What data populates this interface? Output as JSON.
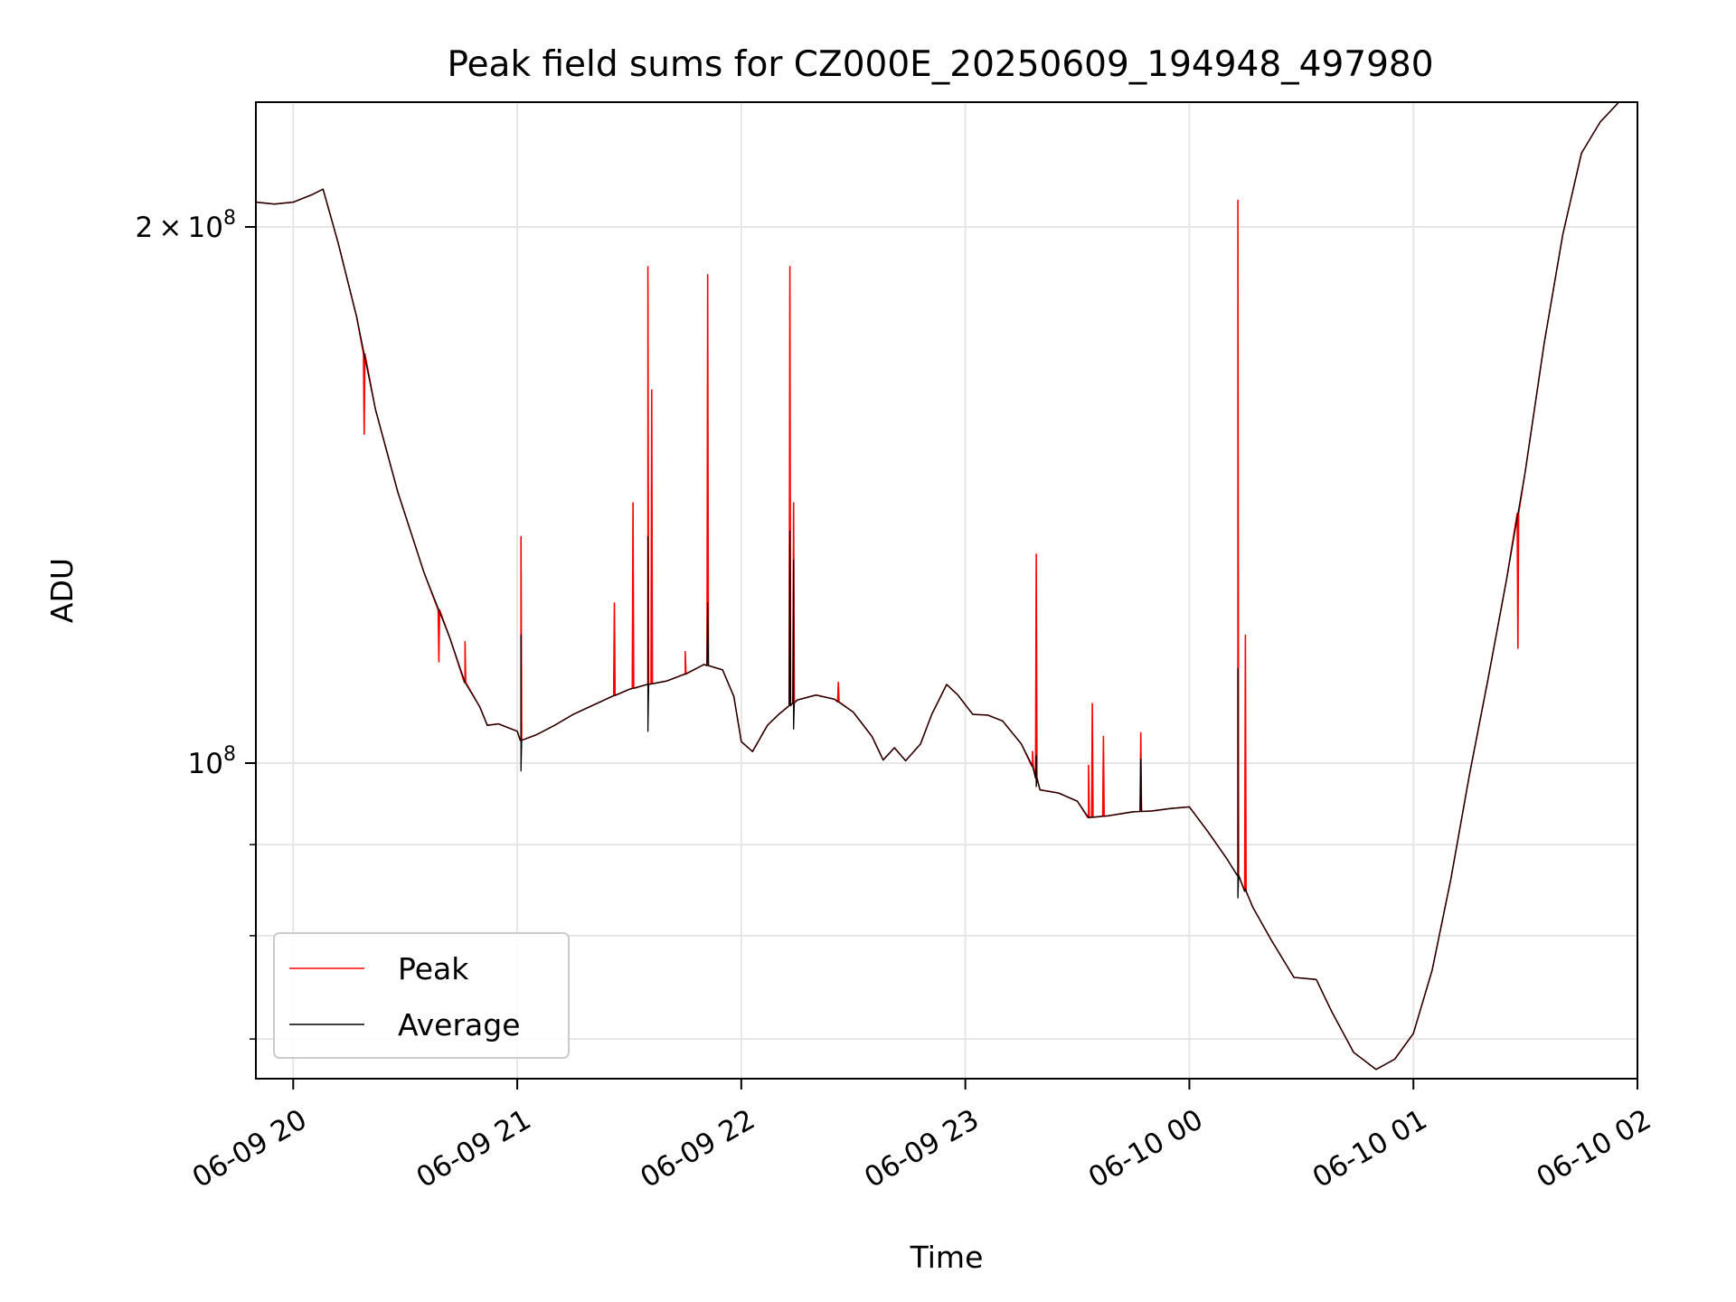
{
  "chart_data": {
    "type": "line",
    "title": "Peak field sums for CZ000E_20250609_194948_497980",
    "xlabel": "Time",
    "ylabel": "ADU",
    "y_scale": "log",
    "grid": true,
    "legend_position": "lower-left",
    "x_range": [
      "2025-06-09 19:50",
      "2025-06-10 02:00"
    ],
    "y_range": [
      66500000,
      235000000
    ],
    "x_ticks": [
      {
        "value": "2025-06-09 20:00",
        "label": "06-09 20"
      },
      {
        "value": "2025-06-09 21:00",
        "label": "06-09 21"
      },
      {
        "value": "2025-06-09 22:00",
        "label": "06-09 22"
      },
      {
        "value": "2025-06-09 23:00",
        "label": "06-09 23"
      },
      {
        "value": "2025-06-10 00:00",
        "label": "06-10 00"
      },
      {
        "value": "2025-06-10 01:00",
        "label": "06-10 01"
      },
      {
        "value": "2025-06-10 02:00",
        "label": "06-10 02"
      }
    ],
    "y_major_ticks": [
      {
        "value": 100000000,
        "base": "10",
        "exp": "8"
      },
      {
        "value": 200000000,
        "coef": "2",
        "base": "10",
        "exp": "8"
      }
    ],
    "y_minor_ticks": [
      70000000,
      80000000,
      90000000
    ],
    "series": [
      {
        "name": "Peak",
        "color": "#ff0000",
        "points": [
          [
            "2025-06-09 19:50",
            206500000
          ],
          [
            "2025-06-09 19:55",
            206000000
          ],
          [
            "2025-06-09 20:00",
            206500000
          ],
          [
            "2025-06-09 20:05",
            208500000
          ],
          [
            "2025-06-09 20:08",
            210000000
          ],
          [
            "2025-06-09 20:12",
            196000000
          ],
          [
            "2025-06-09 20:17",
            178000000
          ],
          [
            "2025-06-09 20:22",
            158000000
          ],
          [
            "2025-06-09 20:28",
            142000000
          ],
          [
            "2025-06-09 20:35",
            128000000
          ],
          [
            "2025-06-09 20:42",
            117500000
          ],
          [
            "2025-06-09 20:46",
            111000000
          ],
          [
            "2025-06-09 20:50",
            107500000
          ],
          [
            "2025-06-09 20:52",
            105000000
          ],
          [
            "2025-06-09 20:55",
            105200000
          ],
          [
            "2025-06-09 21:00",
            104200000
          ],
          [
            "2025-06-09 21:01",
            103000000
          ],
          [
            "2025-06-09 21:05",
            103700000
          ],
          [
            "2025-06-09 21:10",
            105000000
          ],
          [
            "2025-06-09 21:15",
            106500000
          ],
          [
            "2025-06-09 21:20",
            107700000
          ],
          [
            "2025-06-09 21:25",
            108900000
          ],
          [
            "2025-06-09 21:30",
            110000000
          ],
          [
            "2025-06-09 21:35",
            110700000
          ],
          [
            "2025-06-09 21:40",
            111200000
          ],
          [
            "2025-06-09 21:45",
            112200000
          ],
          [
            "2025-06-09 21:50",
            113600000
          ],
          [
            "2025-06-09 21:55",
            112800000
          ],
          [
            "2025-06-09 21:58",
            109000000
          ],
          [
            "2025-06-09 22:00",
            102800000
          ],
          [
            "2025-06-09 22:03",
            101500000
          ],
          [
            "2025-06-09 22:07",
            105000000
          ],
          [
            "2025-06-09 22:10",
            106500000
          ],
          [
            "2025-06-09 22:15",
            108500000
          ],
          [
            "2025-06-09 22:20",
            109200000
          ],
          [
            "2025-06-09 22:25",
            108600000
          ],
          [
            "2025-06-09 22:30",
            106800000
          ],
          [
            "2025-06-09 22:35",
            103500000
          ],
          [
            "2025-06-09 22:38",
            100400000
          ],
          [
            "2025-06-09 22:41",
            102000000
          ],
          [
            "2025-06-09 22:44",
            100300000
          ],
          [
            "2025-06-09 22:48",
            102500000
          ],
          [
            "2025-06-09 22:51",
            106500000
          ],
          [
            "2025-06-09 22:55",
            110700000
          ],
          [
            "2025-06-09 22:58",
            109200000
          ],
          [
            "2025-06-09 23:02",
            106500000
          ],
          [
            "2025-06-09 23:06",
            106400000
          ],
          [
            "2025-06-09 23:10",
            105600000
          ],
          [
            "2025-06-09 23:15",
            102500000
          ],
          [
            "2025-06-09 23:18",
            99600000
          ],
          [
            "2025-06-09 23:20",
            96600000
          ],
          [
            "2025-06-09 23:25",
            96200000
          ],
          [
            "2025-06-09 23:30",
            95200000
          ],
          [
            "2025-06-09 23:33",
            93200000
          ],
          [
            "2025-06-09 23:38",
            93400000
          ],
          [
            "2025-06-09 23:45",
            93900000
          ],
          [
            "2025-06-09 23:50",
            94000000
          ],
          [
            "2025-06-09 23:55",
            94300000
          ],
          [
            "2025-06-10 00:00",
            94500000
          ],
          [
            "2025-06-10 00:05",
            91500000
          ],
          [
            "2025-06-10 00:10",
            88400000
          ],
          [
            "2025-06-10 00:13",
            86500000
          ],
          [
            "2025-06-10 00:17",
            83000000
          ],
          [
            "2025-06-10 00:22",
            79500000
          ],
          [
            "2025-06-10 00:28",
            75800000
          ],
          [
            "2025-06-10 00:34",
            75600000
          ],
          [
            "2025-06-10 00:38",
            72600000
          ],
          [
            "2025-06-10 00:44",
            68800000
          ],
          [
            "2025-06-10 00:50",
            67300000
          ],
          [
            "2025-06-10 00:55",
            68200000
          ],
          [
            "2025-06-10 01:00",
            70500000
          ],
          [
            "2025-06-10 01:05",
            76500000
          ],
          [
            "2025-06-10 01:10",
            86000000
          ],
          [
            "2025-06-10 01:15",
            98500000
          ],
          [
            "2025-06-10 01:20",
            111500000
          ],
          [
            "2025-06-10 01:25",
            127000000
          ],
          [
            "2025-06-10 01:30",
            146000000
          ],
          [
            "2025-06-10 01:35",
            172000000
          ],
          [
            "2025-06-10 01:40",
            198000000
          ],
          [
            "2025-06-10 01:45",
            220000000
          ],
          [
            "2025-06-10 01:50",
            229000000
          ],
          [
            "2025-06-10 01:55",
            235000000
          ],
          [
            "2025-06-10 02:00",
            235000000
          ]
        ],
        "spikes": [
          [
            "2025-06-09 20:19",
            153000000
          ],
          [
            "2025-06-09 20:39",
            114000000
          ],
          [
            "2025-06-09 20:46",
            117000000
          ],
          [
            "2025-06-09 21:01",
            134000000
          ],
          [
            "2025-06-09 21:26",
            123000000
          ],
          [
            "2025-06-09 21:31",
            140000000
          ],
          [
            "2025-06-09 21:35",
            190000000
          ],
          [
            "2025-06-09 21:36",
            162000000
          ],
          [
            "2025-06-09 21:45",
            115500000
          ],
          [
            "2025-06-09 21:51",
            188000000
          ],
          [
            "2025-06-09 22:13",
            190000000
          ],
          [
            "2025-06-09 22:14",
            140000000
          ],
          [
            "2025-06-09 22:26",
            111000000
          ],
          [
            "2025-06-09 23:18",
            101500000
          ],
          [
            "2025-06-09 23:19",
            131000000
          ],
          [
            "2025-06-09 23:33",
            99700000
          ],
          [
            "2025-06-09 23:34",
            108000000
          ],
          [
            "2025-06-09 23:37",
            103500000
          ],
          [
            "2025-06-09 23:47",
            104000000
          ],
          [
            "2025-06-10 00:13",
            207000000
          ],
          [
            "2025-06-10 00:15",
            118000000
          ],
          [
            "2025-06-10 01:28",
            116000000
          ]
        ]
      },
      {
        "name": "Average",
        "color": "#000000",
        "points": [
          [
            "2025-06-09 19:50",
            206500000
          ],
          [
            "2025-06-09 19:55",
            206000000
          ],
          [
            "2025-06-09 20:00",
            206500000
          ],
          [
            "2025-06-09 20:05",
            208500000
          ],
          [
            "2025-06-09 20:08",
            210000000
          ],
          [
            "2025-06-09 20:12",
            196000000
          ],
          [
            "2025-06-09 20:17",
            178000000
          ],
          [
            "2025-06-09 20:22",
            158000000
          ],
          [
            "2025-06-09 20:28",
            142000000
          ],
          [
            "2025-06-09 20:35",
            128000000
          ],
          [
            "2025-06-09 20:42",
            117500000
          ],
          [
            "2025-06-09 20:46",
            111000000
          ],
          [
            "2025-06-09 20:50",
            107500000
          ],
          [
            "2025-06-09 20:52",
            105000000
          ],
          [
            "2025-06-09 20:55",
            105200000
          ],
          [
            "2025-06-09 21:00",
            104200000
          ],
          [
            "2025-06-09 21:01",
            103000000
          ],
          [
            "2025-06-09 21:05",
            103700000
          ],
          [
            "2025-06-09 21:10",
            105000000
          ],
          [
            "2025-06-09 21:15",
            106500000
          ],
          [
            "2025-06-09 21:20",
            107700000
          ],
          [
            "2025-06-09 21:25",
            108900000
          ],
          [
            "2025-06-09 21:30",
            110000000
          ],
          [
            "2025-06-09 21:35",
            110700000
          ],
          [
            "2025-06-09 21:40",
            111200000
          ],
          [
            "2025-06-09 21:45",
            112200000
          ],
          [
            "2025-06-09 21:50",
            113600000
          ],
          [
            "2025-06-09 21:55",
            112800000
          ],
          [
            "2025-06-09 21:58",
            109000000
          ],
          [
            "2025-06-09 22:00",
            102800000
          ],
          [
            "2025-06-09 22:03",
            101500000
          ],
          [
            "2025-06-09 22:07",
            105000000
          ],
          [
            "2025-06-09 22:10",
            106500000
          ],
          [
            "2025-06-09 22:15",
            108500000
          ],
          [
            "2025-06-09 22:20",
            109200000
          ],
          [
            "2025-06-09 22:25",
            108600000
          ],
          [
            "2025-06-09 22:30",
            106800000
          ],
          [
            "2025-06-09 22:35",
            103500000
          ],
          [
            "2025-06-09 22:38",
            100400000
          ],
          [
            "2025-06-09 22:41",
            102000000
          ],
          [
            "2025-06-09 22:44",
            100300000
          ],
          [
            "2025-06-09 22:48",
            102500000
          ],
          [
            "2025-06-09 22:51",
            106500000
          ],
          [
            "2025-06-09 22:55",
            110700000
          ],
          [
            "2025-06-09 22:58",
            109200000
          ],
          [
            "2025-06-09 23:02",
            106500000
          ],
          [
            "2025-06-09 23:06",
            106400000
          ],
          [
            "2025-06-09 23:10",
            105600000
          ],
          [
            "2025-06-09 23:15",
            102500000
          ],
          [
            "2025-06-09 23:18",
            99600000
          ],
          [
            "2025-06-09 23:20",
            96600000
          ],
          [
            "2025-06-09 23:25",
            96200000
          ],
          [
            "2025-06-09 23:30",
            95200000
          ],
          [
            "2025-06-09 23:33",
            93200000
          ],
          [
            "2025-06-09 23:38",
            93400000
          ],
          [
            "2025-06-09 23:45",
            93900000
          ],
          [
            "2025-06-09 23:50",
            94000000
          ],
          [
            "2025-06-09 23:55",
            94300000
          ],
          [
            "2025-06-10 00:00",
            94500000
          ],
          [
            "2025-06-10 00:05",
            91500000
          ],
          [
            "2025-06-10 00:10",
            88400000
          ],
          [
            "2025-06-10 00:13",
            86500000
          ],
          [
            "2025-06-10 00:17",
            83000000
          ],
          [
            "2025-06-10 00:22",
            79500000
          ],
          [
            "2025-06-10 00:28",
            75800000
          ],
          [
            "2025-06-10 00:34",
            75600000
          ],
          [
            "2025-06-10 00:38",
            72600000
          ],
          [
            "2025-06-10 00:44",
            68800000
          ],
          [
            "2025-06-10 00:50",
            67300000
          ],
          [
            "2025-06-10 00:55",
            68200000
          ],
          [
            "2025-06-10 01:00",
            70500000
          ],
          [
            "2025-06-10 01:05",
            76500000
          ],
          [
            "2025-06-10 01:10",
            86000000
          ],
          [
            "2025-06-10 01:15",
            98500000
          ],
          [
            "2025-06-10 01:20",
            111500000
          ],
          [
            "2025-06-10 01:25",
            127000000
          ],
          [
            "2025-06-10 01:30",
            146000000
          ],
          [
            "2025-06-10 01:35",
            172000000
          ],
          [
            "2025-06-10 01:40",
            198000000
          ],
          [
            "2025-06-10 01:45",
            220000000
          ],
          [
            "2025-06-10 01:50",
            229000000
          ],
          [
            "2025-06-10 01:55",
            235000000
          ],
          [
            "2025-06-10 02:00",
            235000000
          ]
        ],
        "spikes": [
          [
            "2025-06-09 21:01",
            118000000
          ],
          [
            "2025-06-09 21:35",
            134000000
          ],
          [
            "2025-06-09 21:51",
            123000000
          ],
          [
            "2025-06-09 22:13",
            135000000
          ],
          [
            "2025-06-09 22:14",
            130000000
          ],
          [
            "2025-06-10 00:13",
            113000000
          ],
          [
            "2025-06-09 23:19",
            101000000
          ],
          [
            "2025-06-09 23:47",
            100500000
          ]
        ],
        "dips": [
          [
            "2025-06-09 21:01",
            99000000
          ],
          [
            "2025-06-09 21:35",
            104200000
          ],
          [
            "2025-06-09 22:14",
            104500000
          ],
          [
            "2025-06-09 23:19",
            97000000
          ],
          [
            "2025-06-10 00:13",
            84000000
          ],
          [
            "2025-06-10 00:15",
            85000000
          ]
        ]
      }
    ]
  }
}
